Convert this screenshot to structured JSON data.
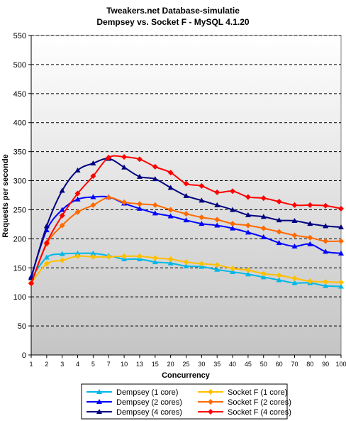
{
  "chart_data": {
    "type": "line",
    "title": "Tweakers.net Database-simulatie",
    "subtitle": "Dempsey vs. Socket F - MySQL 4.1.20",
    "xlabel": "Concurrency",
    "ylabel": "Requests per seconde",
    "categories": [
      "1",
      "2",
      "3",
      "4",
      "5",
      "7",
      "10",
      "13",
      "15",
      "20",
      "25",
      "30",
      "35",
      "40",
      "45",
      "50",
      "60",
      "70",
      "80",
      "90",
      "100"
    ],
    "ylim": [
      0,
      550
    ],
    "yticks": [
      0,
      50,
      100,
      150,
      200,
      250,
      300,
      350,
      400,
      450,
      500,
      550
    ],
    "grid": "horizontal dashed",
    "legend_position": "bottom",
    "series": [
      {
        "name": "Dempsey (1 core)",
        "color": "#00b8e6",
        "marker": "triangle",
        "values": [
          132,
          168,
          174,
          175,
          175,
          171,
          165,
          165,
          160,
          158,
          153,
          152,
          147,
          143,
          139,
          134,
          129,
          124,
          124,
          119,
          118
        ]
      },
      {
        "name": "Socket F (1 core)",
        "color": "#ffc000",
        "marker": "diamond",
        "values": [
          124,
          157,
          163,
          170,
          169,
          169,
          170,
          170,
          167,
          165,
          160,
          157,
          155,
          149,
          146,
          140,
          137,
          132,
          127,
          126,
          125
        ]
      },
      {
        "name": "Dempsey (2 cores)",
        "color": "#0000ff",
        "marker": "triangle",
        "values": [
          135,
          215,
          250,
          268,
          272,
          272,
          261,
          252,
          244,
          239,
          232,
          226,
          223,
          218,
          211,
          203,
          193,
          187,
          191,
          178,
          175
        ]
      },
      {
        "name": "Socket F (2 cores)",
        "color": "#ff6a00",
        "marker": "diamond",
        "values": [
          124,
          191,
          223,
          246,
          258,
          271,
          263,
          260,
          258,
          250,
          243,
          237,
          233,
          226,
          223,
          218,
          212,
          206,
          202,
          196,
          196
        ]
      },
      {
        "name": "Dempsey (4 cores)",
        "color": "#000080",
        "marker": "triangle",
        "values": [
          133,
          222,
          283,
          318,
          330,
          338,
          323,
          307,
          303,
          288,
          274,
          266,
          258,
          250,
          241,
          238,
          232,
          231,
          226,
          222,
          220
        ]
      },
      {
        "name": "Socket F (4 cores)",
        "color": "#ff0000",
        "marker": "diamond",
        "values": [
          123,
          193,
          240,
          278,
          308,
          340,
          341,
          337,
          324,
          314,
          295,
          291,
          280,
          282,
          272,
          270,
          264,
          258,
          258,
          257,
          252
        ]
      }
    ]
  }
}
